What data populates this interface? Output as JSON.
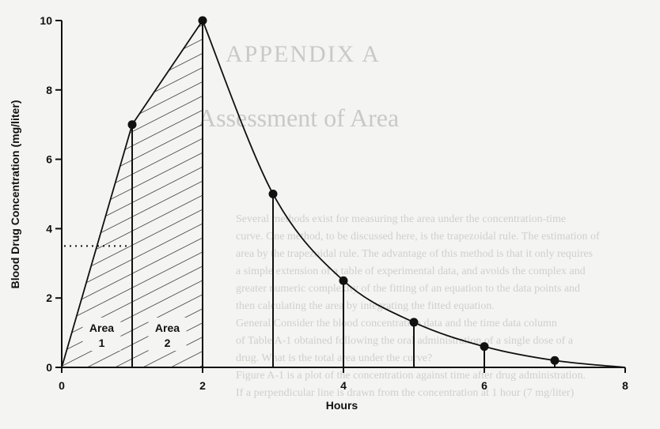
{
  "chart_data": {
    "type": "line",
    "xlabel": "Hours",
    "ylabel": "Blood Drug Concentration (mg/liter)",
    "xlim": [
      0,
      8
    ],
    "ylim": [
      0,
      10
    ],
    "x_ticks": [
      0,
      2,
      4,
      6,
      8
    ],
    "y_ticks": [
      0,
      2,
      4,
      6,
      8,
      10
    ],
    "grid": false,
    "series": [
      {
        "points": [
          {
            "x": 0,
            "y": 0
          },
          {
            "x": 1,
            "y": 7
          },
          {
            "x": 2,
            "y": 10
          },
          {
            "x": 3,
            "y": 5
          },
          {
            "x": 4,
            "y": 2.5
          },
          {
            "x": 5,
            "y": 1.3
          },
          {
            "x": 6,
            "y": 0.6
          },
          {
            "x": 7,
            "y": 0.2
          }
        ],
        "tail_end": {
          "x": 8,
          "y": 0
        }
      }
    ],
    "reference_line_y": 3.5,
    "shaded_areas": [
      {
        "name_line1": "Area",
        "name_line2": "1",
        "x_from": 0,
        "x_to": 1
      },
      {
        "name_line1": "Area",
        "name_line2": "2",
        "x_from": 1,
        "x_to": 2
      }
    ]
  },
  "background_text": {
    "heading": "APPENDIX A",
    "subheading": "Assessment of Area",
    "lines": [
      "Several methods exist for measuring the area under the concentration-time",
      "curve. One method, to be discussed here, is the trapezoidal rule. The estimation of",
      "area by the trapezoidal rule. The advantage of this method is that it only requires",
      "a simple extension of a table of experimental data, and avoids the complex and",
      "greater numeric complexity of the fitting of an equation to the data points and",
      "then calculating the area by integrating the fitted equation.",
      "General Consider the blood concentration data and the time data column",
      "of Table A-1 obtained following the oral administration of a single dose of a",
      "drug. What is the total area under the curve?",
      "Figure A-1 is a plot of the concentration against time after drug administration.",
      "If a perpendicular line is drawn from the concentration at 1 hour (7 mg/liter)"
    ]
  }
}
